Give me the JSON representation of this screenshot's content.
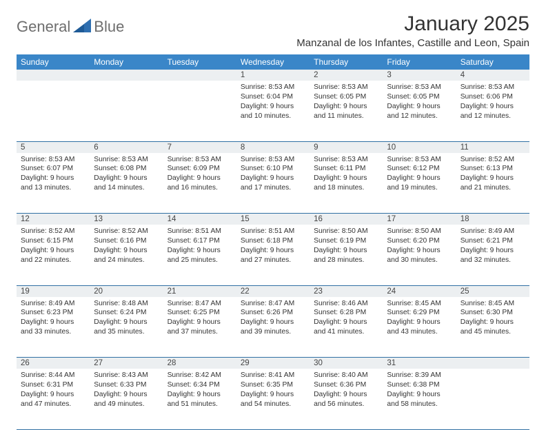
{
  "brand": {
    "general": "General",
    "blue": "Blue"
  },
  "title": "January 2025",
  "location": "Manzanal de los Infantes, Castille and Leon, Spain",
  "colors": {
    "header_bg": "#3a86c8",
    "header_fg": "#ffffff",
    "daynum_bg": "#eceff1",
    "rule": "#2f6fa3",
    "text": "#333333"
  },
  "weekdays": [
    "Sunday",
    "Monday",
    "Tuesday",
    "Wednesday",
    "Thursday",
    "Friday",
    "Saturday"
  ],
  "weeks": [
    [
      null,
      null,
      null,
      {
        "n": "1",
        "sr": "8:53 AM",
        "ss": "6:04 PM",
        "dl": "9 hours and 10 minutes."
      },
      {
        "n": "2",
        "sr": "8:53 AM",
        "ss": "6:05 PM",
        "dl": "9 hours and 11 minutes."
      },
      {
        "n": "3",
        "sr": "8:53 AM",
        "ss": "6:05 PM",
        "dl": "9 hours and 12 minutes."
      },
      {
        "n": "4",
        "sr": "8:53 AM",
        "ss": "6:06 PM",
        "dl": "9 hours and 12 minutes."
      }
    ],
    [
      {
        "n": "5",
        "sr": "8:53 AM",
        "ss": "6:07 PM",
        "dl": "9 hours and 13 minutes."
      },
      {
        "n": "6",
        "sr": "8:53 AM",
        "ss": "6:08 PM",
        "dl": "9 hours and 14 minutes."
      },
      {
        "n": "7",
        "sr": "8:53 AM",
        "ss": "6:09 PM",
        "dl": "9 hours and 16 minutes."
      },
      {
        "n": "8",
        "sr": "8:53 AM",
        "ss": "6:10 PM",
        "dl": "9 hours and 17 minutes."
      },
      {
        "n": "9",
        "sr": "8:53 AM",
        "ss": "6:11 PM",
        "dl": "9 hours and 18 minutes."
      },
      {
        "n": "10",
        "sr": "8:53 AM",
        "ss": "6:12 PM",
        "dl": "9 hours and 19 minutes."
      },
      {
        "n": "11",
        "sr": "8:52 AM",
        "ss": "6:13 PM",
        "dl": "9 hours and 21 minutes."
      }
    ],
    [
      {
        "n": "12",
        "sr": "8:52 AM",
        "ss": "6:15 PM",
        "dl": "9 hours and 22 minutes."
      },
      {
        "n": "13",
        "sr": "8:52 AM",
        "ss": "6:16 PM",
        "dl": "9 hours and 24 minutes."
      },
      {
        "n": "14",
        "sr": "8:51 AM",
        "ss": "6:17 PM",
        "dl": "9 hours and 25 minutes."
      },
      {
        "n": "15",
        "sr": "8:51 AM",
        "ss": "6:18 PM",
        "dl": "9 hours and 27 minutes."
      },
      {
        "n": "16",
        "sr": "8:50 AM",
        "ss": "6:19 PM",
        "dl": "9 hours and 28 minutes."
      },
      {
        "n": "17",
        "sr": "8:50 AM",
        "ss": "6:20 PM",
        "dl": "9 hours and 30 minutes."
      },
      {
        "n": "18",
        "sr": "8:49 AM",
        "ss": "6:21 PM",
        "dl": "9 hours and 32 minutes."
      }
    ],
    [
      {
        "n": "19",
        "sr": "8:49 AM",
        "ss": "6:23 PM",
        "dl": "9 hours and 33 minutes."
      },
      {
        "n": "20",
        "sr": "8:48 AM",
        "ss": "6:24 PM",
        "dl": "9 hours and 35 minutes."
      },
      {
        "n": "21",
        "sr": "8:47 AM",
        "ss": "6:25 PM",
        "dl": "9 hours and 37 minutes."
      },
      {
        "n": "22",
        "sr": "8:47 AM",
        "ss": "6:26 PM",
        "dl": "9 hours and 39 minutes."
      },
      {
        "n": "23",
        "sr": "8:46 AM",
        "ss": "6:28 PM",
        "dl": "9 hours and 41 minutes."
      },
      {
        "n": "24",
        "sr": "8:45 AM",
        "ss": "6:29 PM",
        "dl": "9 hours and 43 minutes."
      },
      {
        "n": "25",
        "sr": "8:45 AM",
        "ss": "6:30 PM",
        "dl": "9 hours and 45 minutes."
      }
    ],
    [
      {
        "n": "26",
        "sr": "8:44 AM",
        "ss": "6:31 PM",
        "dl": "9 hours and 47 minutes."
      },
      {
        "n": "27",
        "sr": "8:43 AM",
        "ss": "6:33 PM",
        "dl": "9 hours and 49 minutes."
      },
      {
        "n": "28",
        "sr": "8:42 AM",
        "ss": "6:34 PM",
        "dl": "9 hours and 51 minutes."
      },
      {
        "n": "29",
        "sr": "8:41 AM",
        "ss": "6:35 PM",
        "dl": "9 hours and 54 minutes."
      },
      {
        "n": "30",
        "sr": "8:40 AM",
        "ss": "6:36 PM",
        "dl": "9 hours and 56 minutes."
      },
      {
        "n": "31",
        "sr": "8:39 AM",
        "ss": "6:38 PM",
        "dl": "9 hours and 58 minutes."
      },
      null
    ]
  ],
  "labels": {
    "sunrise": "Sunrise:",
    "sunset": "Sunset:",
    "daylight": "Daylight:"
  }
}
